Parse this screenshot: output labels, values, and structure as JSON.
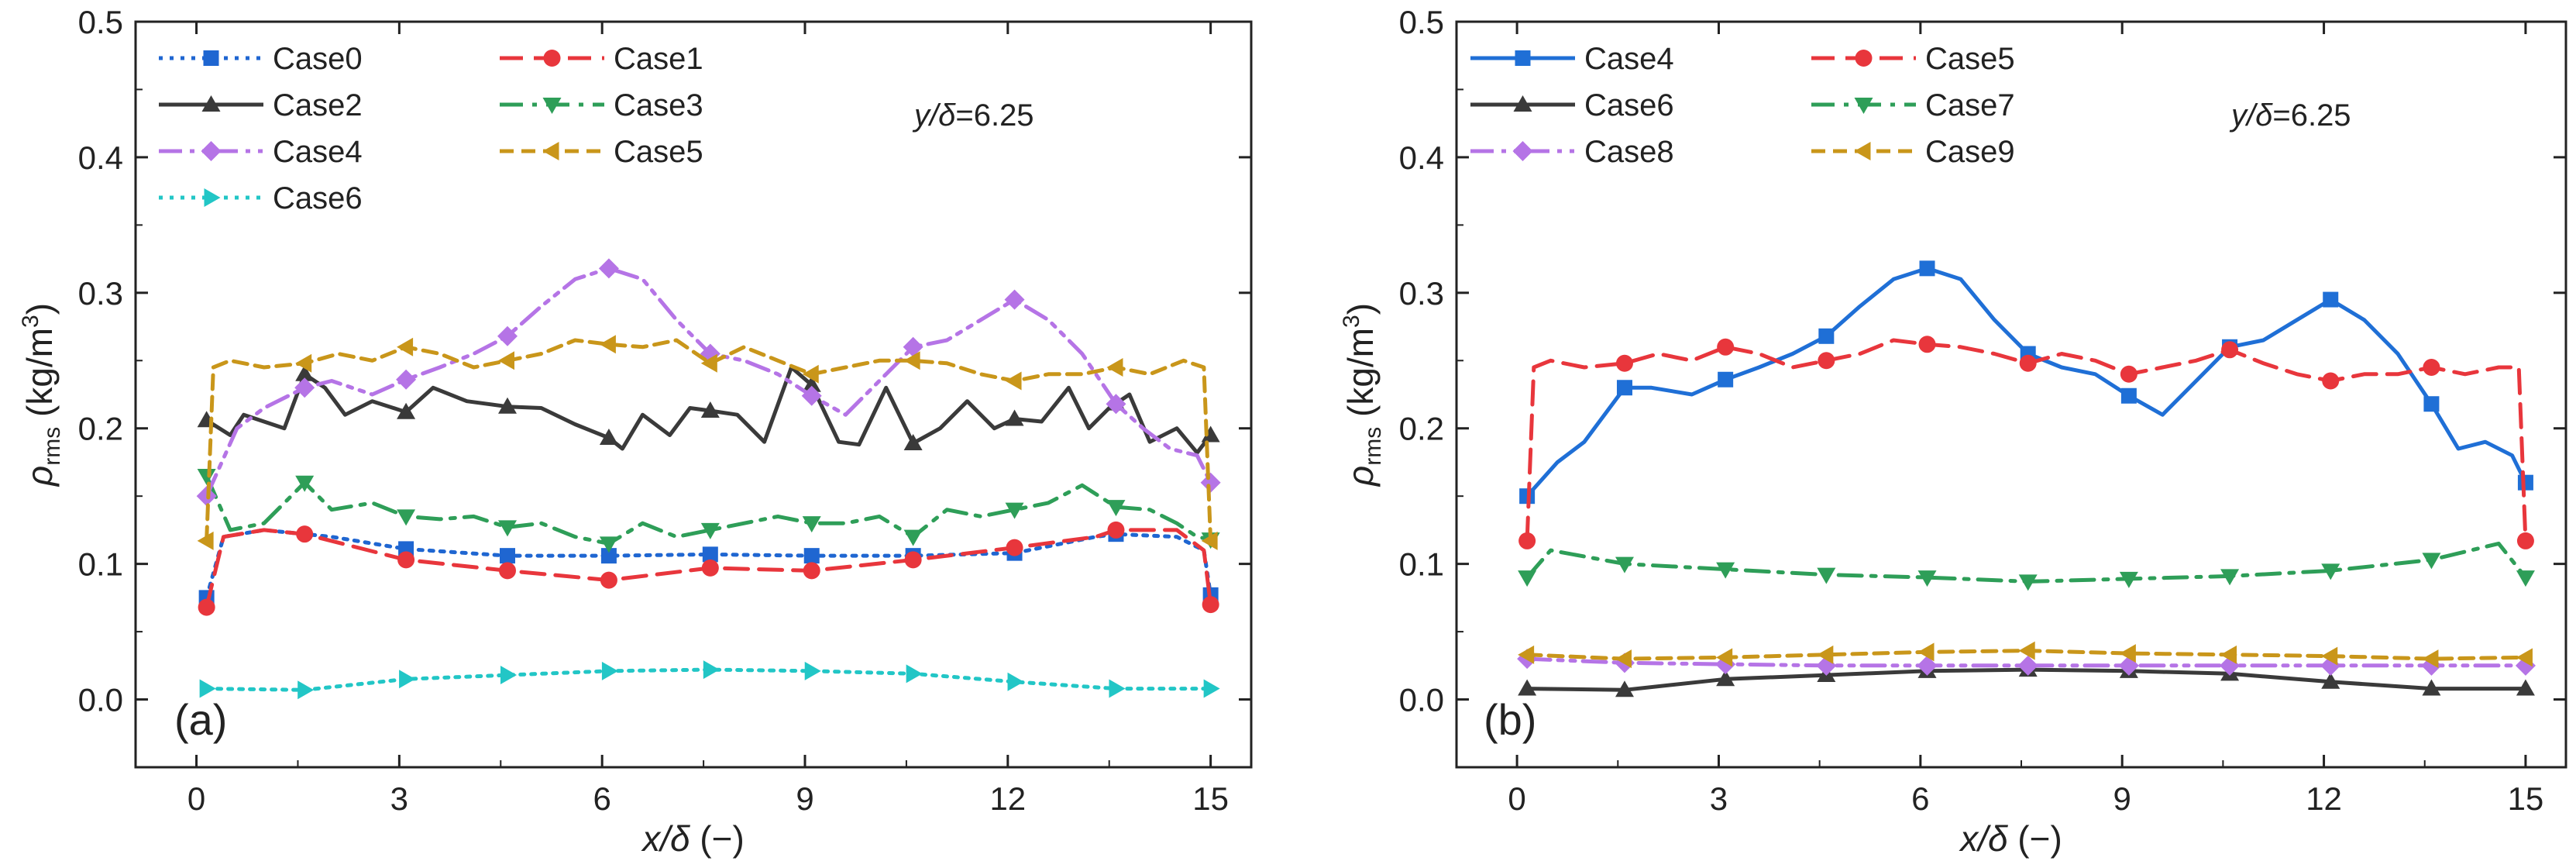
{
  "colors": {
    "Case0": "#1f66d1",
    "Case1": "#e8363c",
    "Case2": "#3a3a3a",
    "Case3": "#2e9e58",
    "Case4_a": "#b574e6",
    "Case4_b": "#1f6fd6",
    "Case5": "#c9961a",
    "Case6_a": "#22c6c6",
    "Case6_b": "#3a3a3a",
    "Case7": "#2e9e58",
    "Case8": "#b574e6",
    "Case9": "#c9961a"
  },
  "chart_data": [
    {
      "type": "line",
      "panel_label": "(a)",
      "annotation": {
        "italic": "y/δ",
        "rest": "=6.25"
      },
      "xlabel": {
        "italic": "x/δ",
        "rest": " (−)"
      },
      "ylabel": {
        "main": "ρ",
        "sub": "rms",
        "unit": " (kg/m",
        "sup": "3",
        "close": ")"
      },
      "xlim": [
        -0.9,
        15.6
      ],
      "ylim": [
        -0.05,
        0.5
      ],
      "xticks": [
        0,
        3,
        6,
        9,
        12,
        15
      ],
      "xtick_labels": [
        "0",
        "3",
        "6",
        "9",
        "12",
        "15"
      ],
      "yticks": [
        0.0,
        0.1,
        0.2,
        0.3,
        0.4,
        0.5
      ],
      "ytick_labels": [
        "0.0",
        "0.1",
        "0.2",
        "0.3",
        "0.4",
        "0.5"
      ],
      "legend_columns": 2,
      "series": [
        {
          "name": "Case0",
          "color_key": "Case0",
          "dash": "dotted",
          "marker": "square",
          "x": [
            0.15,
            0.4,
            1.0,
            2.0,
            3.1,
            4.6,
            6.1,
            7.6,
            9.1,
            10.6,
            12.1,
            13.3,
            13.6,
            14.5,
            14.9,
            15.0
          ],
          "y": [
            0.075,
            0.12,
            0.125,
            0.12,
            0.111,
            0.106,
            0.106,
            0.107,
            0.106,
            0.106,
            0.108,
            0.12,
            0.122,
            0.12,
            0.11,
            0.077
          ],
          "marker_x": [
            0.15,
            3.1,
            4.6,
            6.1,
            7.6,
            9.1,
            10.6,
            12.1,
            13.6,
            15.0
          ]
        },
        {
          "name": "Case1",
          "color_key": "Case1",
          "dash": "longdash",
          "marker": "circle",
          "x": [
            0.15,
            0.4,
            1.0,
            1.6,
            3.1,
            4.6,
            6.1,
            7.6,
            9.1,
            10.6,
            12.1,
            13.3,
            13.6,
            14.5,
            14.9,
            15.0
          ],
          "y": [
            0.068,
            0.12,
            0.125,
            0.122,
            0.103,
            0.095,
            0.088,
            0.097,
            0.095,
            0.103,
            0.112,
            0.12,
            0.125,
            0.125,
            0.11,
            0.07
          ],
          "marker_x": [
            0.15,
            1.6,
            3.1,
            4.6,
            6.1,
            7.6,
            9.1,
            10.6,
            12.1,
            13.6,
            15.0
          ]
        },
        {
          "name": "Case2",
          "color_key": "Case2",
          "dash": "solid",
          "marker": "triangle-up",
          "x": [
            0.15,
            0.5,
            0.7,
            1.0,
            1.3,
            1.6,
            1.9,
            2.2,
            2.6,
            3.1,
            3.5,
            4.0,
            4.6,
            5.1,
            5.6,
            6.1,
            6.3,
            6.6,
            7.0,
            7.3,
            7.6,
            8.0,
            8.4,
            8.8,
            9.1,
            9.5,
            9.8,
            10.2,
            10.6,
            11.0,
            11.4,
            11.8,
            12.1,
            12.5,
            12.9,
            13.2,
            13.5,
            13.8,
            14.1,
            14.5,
            14.8,
            15.0
          ],
          "y": [
            0.206,
            0.195,
            0.21,
            0.205,
            0.2,
            0.24,
            0.23,
            0.21,
            0.22,
            0.212,
            0.23,
            0.22,
            0.216,
            0.215,
            0.203,
            0.193,
            0.185,
            0.21,
            0.195,
            0.215,
            0.213,
            0.21,
            0.19,
            0.245,
            0.232,
            0.19,
            0.188,
            0.23,
            0.189,
            0.2,
            0.22,
            0.2,
            0.207,
            0.205,
            0.23,
            0.2,
            0.215,
            0.225,
            0.19,
            0.2,
            0.182,
            0.195
          ],
          "marker_x": [
            0.15,
            1.6,
            3.1,
            4.6,
            6.1,
            7.6,
            9.1,
            10.6,
            12.1,
            13.6,
            15.0
          ]
        },
        {
          "name": "Case3",
          "color_key": "Case3",
          "dash": "dashdot",
          "marker": "triangle-down",
          "x": [
            0.15,
            0.5,
            1.0,
            1.6,
            2.0,
            2.6,
            3.1,
            3.6,
            4.1,
            4.6,
            5.1,
            5.6,
            6.1,
            6.6,
            7.1,
            7.6,
            8.1,
            8.6,
            9.1,
            9.6,
            10.1,
            10.6,
            11.1,
            11.6,
            12.1,
            12.6,
            13.1,
            13.6,
            14.1,
            14.5,
            14.8,
            15.0
          ],
          "y": [
            0.165,
            0.125,
            0.13,
            0.16,
            0.14,
            0.145,
            0.135,
            0.133,
            0.135,
            0.127,
            0.13,
            0.12,
            0.115,
            0.13,
            0.12,
            0.125,
            0.13,
            0.135,
            0.13,
            0.13,
            0.135,
            0.12,
            0.14,
            0.135,
            0.14,
            0.145,
            0.158,
            0.142,
            0.14,
            0.13,
            0.12,
            0.118
          ],
          "marker_x": [
            0.15,
            1.6,
            3.1,
            4.6,
            6.1,
            7.6,
            9.1,
            10.6,
            12.1,
            13.6,
            15.0
          ]
        },
        {
          "name": "Case4",
          "color_key": "Case4_a",
          "dash": "dashdotdot",
          "marker": "diamond",
          "x": [
            0.15,
            0.6,
            1.0,
            1.6,
            2.0,
            2.6,
            3.1,
            3.6,
            4.1,
            4.6,
            5.1,
            5.6,
            6.1,
            6.6,
            7.1,
            7.6,
            8.1,
            8.6,
            9.1,
            9.6,
            10.1,
            10.6,
            11.1,
            11.6,
            12.1,
            12.6,
            13.1,
            13.6,
            14.0,
            14.4,
            14.8,
            15.0
          ],
          "y": [
            0.15,
            0.2,
            0.215,
            0.23,
            0.235,
            0.225,
            0.236,
            0.245,
            0.255,
            0.268,
            0.29,
            0.31,
            0.318,
            0.31,
            0.28,
            0.255,
            0.25,
            0.24,
            0.224,
            0.21,
            0.235,
            0.26,
            0.265,
            0.28,
            0.295,
            0.28,
            0.255,
            0.218,
            0.2,
            0.185,
            0.18,
            0.16
          ],
          "marker_x": [
            0.15,
            1.6,
            3.1,
            4.6,
            6.1,
            7.6,
            9.1,
            10.6,
            12.1,
            13.6,
            15.0
          ]
        },
        {
          "name": "Case5",
          "color_key": "Case5",
          "dash": "shortdash",
          "marker": "triangle-left",
          "x": [
            0.15,
            0.25,
            0.5,
            1.0,
            1.6,
            2.1,
            2.6,
            3.1,
            3.6,
            4.1,
            4.6,
            5.1,
            5.6,
            6.1,
            6.6,
            7.1,
            7.6,
            8.1,
            8.6,
            9.1,
            9.6,
            10.1,
            10.6,
            11.1,
            11.6,
            12.1,
            12.6,
            13.1,
            13.6,
            14.1,
            14.6,
            14.9,
            15.0
          ],
          "y": [
            0.117,
            0.245,
            0.25,
            0.245,
            0.248,
            0.255,
            0.25,
            0.26,
            0.255,
            0.245,
            0.25,
            0.255,
            0.265,
            0.262,
            0.26,
            0.265,
            0.248,
            0.26,
            0.25,
            0.24,
            0.245,
            0.25,
            0.25,
            0.248,
            0.24,
            0.235,
            0.24,
            0.24,
            0.245,
            0.24,
            0.25,
            0.245,
            0.117
          ],
          "marker_x": [
            0.15,
            1.6,
            3.1,
            4.6,
            6.1,
            7.6,
            9.1,
            10.6,
            12.1,
            13.6,
            15.0
          ]
        },
        {
          "name": "Case6",
          "color_key": "Case6_a",
          "dash": "dotted",
          "marker": "triangle-right",
          "x": [
            0.15,
            1.6,
            3.1,
            4.6,
            6.1,
            7.6,
            9.1,
            10.6,
            12.1,
            13.6,
            15.0
          ],
          "y": [
            0.008,
            0.007,
            0.015,
            0.018,
            0.021,
            0.022,
            0.021,
            0.019,
            0.013,
            0.008,
            0.008
          ],
          "marker_x": [
            0.15,
            1.6,
            3.1,
            4.6,
            6.1,
            7.6,
            9.1,
            10.6,
            12.1,
            13.6,
            15.0
          ]
        }
      ]
    },
    {
      "type": "line",
      "panel_label": "(b)",
      "annotation": {
        "italic": "y/δ",
        "rest": "=6.25"
      },
      "xlabel": {
        "italic": "x/δ",
        "rest": " (−)"
      },
      "ylabel": {
        "main": "ρ",
        "sub": "rms",
        "unit": " (kg/m",
        "sup": "3",
        "close": ")"
      },
      "xlim": [
        -0.9,
        15.6
      ],
      "ylim": [
        -0.05,
        0.5
      ],
      "xticks": [
        0,
        3,
        6,
        9,
        12,
        15
      ],
      "xtick_labels": [
        "0",
        "3",
        "6",
        "9",
        "12",
        "15"
      ],
      "yticks": [
        0.0,
        0.1,
        0.2,
        0.3,
        0.4,
        0.5
      ],
      "ytick_labels": [
        "0.0",
        "0.1",
        "0.2",
        "0.3",
        "0.4",
        "0.5"
      ],
      "legend_columns": 2,
      "series": [
        {
          "name": "Case4",
          "color_key": "Case4_b",
          "dash": "solid",
          "marker": "square",
          "x": [
            0.15,
            0.6,
            1.0,
            1.6,
            2.0,
            2.6,
            3.1,
            3.6,
            4.1,
            4.6,
            5.1,
            5.6,
            6.1,
            6.6,
            7.1,
            7.6,
            8.1,
            8.6,
            9.1,
            9.6,
            10.1,
            10.6,
            11.1,
            11.6,
            12.1,
            12.6,
            13.1,
            13.6,
            14.0,
            14.4,
            14.8,
            15.0
          ],
          "y": [
            0.15,
            0.175,
            0.19,
            0.23,
            0.23,
            0.225,
            0.236,
            0.245,
            0.255,
            0.268,
            0.29,
            0.31,
            0.318,
            0.31,
            0.28,
            0.255,
            0.245,
            0.24,
            0.224,
            0.21,
            0.235,
            0.26,
            0.265,
            0.28,
            0.295,
            0.28,
            0.255,
            0.218,
            0.185,
            0.19,
            0.18,
            0.16
          ],
          "marker_x": [
            0.15,
            1.6,
            3.1,
            4.6,
            6.1,
            7.6,
            9.1,
            10.6,
            12.1,
            13.6,
            15.0
          ]
        },
        {
          "name": "Case5",
          "color_key": "Case5_alias",
          "color": "#e8363c",
          "dash": "longdash",
          "marker": "circle",
          "x": [
            0.15,
            0.25,
            0.5,
            1.0,
            1.6,
            2.1,
            2.6,
            3.1,
            3.6,
            4.1,
            4.6,
            5.1,
            5.6,
            6.1,
            6.6,
            7.1,
            7.6,
            8.1,
            8.6,
            9.1,
            9.6,
            10.1,
            10.6,
            11.1,
            11.6,
            12.1,
            12.6,
            13.1,
            13.6,
            14.1,
            14.6,
            14.9,
            15.0
          ],
          "y": [
            0.117,
            0.245,
            0.25,
            0.245,
            0.248,
            0.255,
            0.25,
            0.26,
            0.255,
            0.245,
            0.25,
            0.255,
            0.265,
            0.262,
            0.26,
            0.255,
            0.248,
            0.255,
            0.25,
            0.24,
            0.245,
            0.25,
            0.258,
            0.248,
            0.24,
            0.235,
            0.24,
            0.24,
            0.245,
            0.24,
            0.245,
            0.245,
            0.117
          ],
          "marker_x": [
            0.15,
            1.6,
            3.1,
            4.6,
            6.1,
            7.6,
            9.1,
            10.6,
            12.1,
            13.6,
            15.0
          ]
        },
        {
          "name": "Case6",
          "color_key": "Case6_b",
          "dash": "solid",
          "marker": "triangle-up",
          "x": [
            0.15,
            1.6,
            3.1,
            4.6,
            6.1,
            7.6,
            9.1,
            10.6,
            12.1,
            13.6,
            15.0
          ],
          "y": [
            0.008,
            0.007,
            0.015,
            0.018,
            0.021,
            0.022,
            0.021,
            0.019,
            0.013,
            0.008,
            0.008
          ],
          "marker_x": [
            0.15,
            1.6,
            3.1,
            4.6,
            6.1,
            7.6,
            9.1,
            10.6,
            12.1,
            13.6,
            15.0
          ]
        },
        {
          "name": "Case7",
          "color_key": "Case7",
          "dash": "dashdot",
          "marker": "triangle-down",
          "x": [
            0.15,
            0.5,
            1.6,
            3.1,
            4.6,
            6.1,
            7.6,
            9.1,
            10.6,
            12.1,
            13.6,
            14.6,
            15.0
          ],
          "y": [
            0.09,
            0.11,
            0.1,
            0.096,
            0.092,
            0.09,
            0.087,
            0.089,
            0.091,
            0.095,
            0.103,
            0.115,
            0.09
          ],
          "marker_x": [
            0.15,
            1.6,
            3.1,
            4.6,
            6.1,
            7.6,
            9.1,
            10.6,
            12.1,
            13.6,
            15.0
          ]
        },
        {
          "name": "Case8",
          "color_key": "Case8",
          "dash": "dashdotdot",
          "marker": "diamond",
          "x": [
            0.15,
            1.6,
            3.1,
            4.6,
            6.1,
            7.6,
            9.1,
            10.6,
            12.1,
            13.6,
            15.0
          ],
          "y": [
            0.03,
            0.027,
            0.026,
            0.025,
            0.025,
            0.025,
            0.025,
            0.025,
            0.025,
            0.025,
            0.025
          ],
          "marker_x": [
            0.15,
            1.6,
            3.1,
            4.6,
            6.1,
            7.6,
            9.1,
            10.6,
            12.1,
            13.6,
            15.0
          ]
        },
        {
          "name": "Case9",
          "color_key": "Case9",
          "dash": "shortdash",
          "marker": "triangle-left",
          "x": [
            0.15,
            1.6,
            3.1,
            4.6,
            6.1,
            7.6,
            9.1,
            10.6,
            12.1,
            13.6,
            15.0
          ],
          "y": [
            0.033,
            0.03,
            0.031,
            0.033,
            0.035,
            0.036,
            0.034,
            0.033,
            0.032,
            0.03,
            0.031
          ],
          "marker_x": [
            0.15,
            1.6,
            3.1,
            4.6,
            6.1,
            7.6,
            9.1,
            10.6,
            12.1,
            13.6,
            15.0
          ]
        }
      ]
    }
  ]
}
